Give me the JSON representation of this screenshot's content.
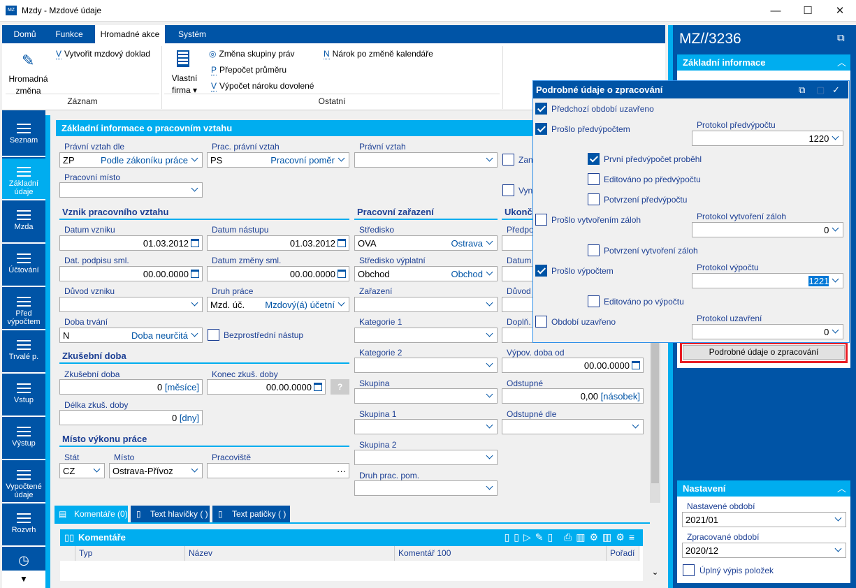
{
  "window": {
    "title": "Mzdy - Mzdové údaje",
    "minimize": "—",
    "maximize": "☐",
    "close": "✕"
  },
  "ribbon": {
    "tabs": [
      "Domů",
      "Funkce",
      "Hromadné akce",
      "Systém"
    ],
    "active_tab": "Hromadné akce",
    "hromadna_zmena": "Hromadná změna",
    "vytvorit": "Vytvořit mzdový doklad",
    "vytvorit_key": "V",
    "group1": "Záznam",
    "vlastni_firma": "Vlastní firma",
    "zmena_skupiny": "Změna skupiny práv",
    "prepocet": "Přepočet  průměru",
    "prepocet_key": "P",
    "vypocet_naroku": "Výpočet nároku dovolené",
    "vypocet_key": "V",
    "narok": "Nárok po změně kalendáře",
    "narok_key": "N",
    "group2": "Ostatní"
  },
  "sidebar": {
    "items": [
      "Seznam",
      "Základní údaje",
      "Mzda",
      "Účtování",
      "Před výpočtem",
      "Trvalé p.",
      "Vstup",
      "Výstup",
      "Vypočtené údaje",
      "Rozvrh"
    ],
    "active": "Základní údaje"
  },
  "form": {
    "header": "Základní informace o pracovním vztahu",
    "pravni_vztah_dle": {
      "label": "Právní vztah dle",
      "code": "ZP",
      "text": "Podle zákoníku práce"
    },
    "prac_pravni_vztah": {
      "label": "Prac. právní vztah",
      "code": "PS",
      "text": "Pracovní poměr"
    },
    "pravni_vztah": {
      "label": "Právní vztah",
      "value": ""
    },
    "zan": "Zan",
    "vyn": "Vyn",
    "pracovni_misto": {
      "label": "Pracovní místo",
      "value": ""
    },
    "vznik_heading": "Vznik pracovního vztahu",
    "datum_vzniku": {
      "label": "Datum vzniku",
      "value": "01.03.2012"
    },
    "datum_nastupu": {
      "label": "Datum nástupu",
      "value": "01.03.2012"
    },
    "dat_podpisu": {
      "label": "Dat. podpisu sml.",
      "value": "00.00.0000"
    },
    "datum_zmeny": {
      "label": "Datum změny sml.",
      "value": "00.00.0000"
    },
    "duvod_vzniku": {
      "label": "Důvod vzniku",
      "value": ""
    },
    "druh_prace": {
      "label": "Druh práce",
      "code": "Mzd. úč.",
      "text": "Mzdový(á) účetní"
    },
    "doba_trvani": {
      "label": "Doba trvání",
      "code": "N",
      "text": "Doba neurčitá"
    },
    "bezprostredni": {
      "label": "Bezprostřední nástup",
      "checked": false
    },
    "zkusebni_heading": "Zkušební doba",
    "zkusebni_doba": {
      "label": "Zkušební doba",
      "value": "0",
      "unit": "[měsíce]"
    },
    "konec_zkus": {
      "label": "Konec zkuš. doby",
      "value": "00.00.0000",
      "help": "?"
    },
    "delka_zkus": {
      "label": "Délka zkuš. doby",
      "value": "0",
      "unit": "[dny]"
    },
    "misto_heading": "Místo výkonu práce",
    "stat": {
      "label": "Stát",
      "value": "CZ"
    },
    "misto": {
      "label": "Místo",
      "value": "Ostrava-Přívoz"
    },
    "pracoviste": {
      "label": "Pracoviště",
      "value": "···"
    },
    "zarazeni_heading": "Pracovní zařazení",
    "stredisko": {
      "label": "Středisko",
      "code": "OVA",
      "text": "Ostrava"
    },
    "stredisko_vyplatni": {
      "label": "Středisko výplatní",
      "code": "Obchod",
      "text": "Obchod"
    },
    "zarazeni": {
      "label": "Zařazení"
    },
    "kategorie1": {
      "label": "Kategorie 1"
    },
    "kategorie2": {
      "label": "Kategorie 2"
    },
    "skupina": {
      "label": "Skupina"
    },
    "skupina1": {
      "label": "Skupina 1"
    },
    "skupina2": {
      "label": "Skupina 2"
    },
    "druh_prac_pom": {
      "label": "Druh prac. pom."
    },
    "ukonc_heading": "Ukonč",
    "predpo": "Předpo",
    "datum": "Datum",
    "duvod": "Důvod",
    "dopln": "Doplň.",
    "vypov_doba": {
      "label": "Výpov. doba od",
      "value": "00.00.0000"
    },
    "odstupne": {
      "label": "Odstupné",
      "value": "0,00",
      "unit": "[násobek]"
    },
    "odstupne_dle": {
      "label": "Odstupné dle",
      "value": ""
    }
  },
  "bottom": {
    "tabs": [
      "Komentáře (0)",
      "Text hlavičky ( )",
      "Text patičky ( )"
    ],
    "grid_title": "Komentáře",
    "columns": [
      "Typ",
      "Název",
      "Komentář 100",
      "Pořadí"
    ]
  },
  "right_panel": {
    "doc_number": "MZ//3236",
    "section1": "Základní informace",
    "details_button": "Podrobné údaje o zpracování",
    "section2": "Nastavení",
    "nastavene_label": "Nastavené období",
    "nastavene_value": "2021/01",
    "zpracovane_label": "Zpracované období",
    "zpracovane_value": "2020/12",
    "uplny_vypis": "Úplný výpis položek",
    "uplny_checked": false
  },
  "popup": {
    "title": "Podrobné údaje o zpracování",
    "predchozi": {
      "label": "Předchozí období uzavřeno",
      "checked": true
    },
    "proslo_predvypoctem": {
      "label": "Prošlo předvýpočtem",
      "checked": true
    },
    "protokol_predvypoctu": {
      "label": "Protokol předvýpočtu",
      "value": "1220"
    },
    "prvni_predvypocet": {
      "label": "První předvýpočet proběhl",
      "checked": true
    },
    "editovano_po_predvypoctu": {
      "label": "Editováno po předvýpočtu",
      "checked": false
    },
    "potvrzeni_predvypoctu": {
      "label": "Potvrzení předvýpočtu",
      "checked": false
    },
    "proslo_zalohy": {
      "label": "Prošlo vytvořením záloh",
      "checked": false
    },
    "protokol_zaloh": {
      "label": "Protokol vytvoření záloh",
      "value": "0"
    },
    "potvrzeni_zaloh": {
      "label": "Potvrzení vytvoření záloh",
      "checked": false
    },
    "proslo_vypoctem": {
      "label": "Prošlo výpočtem",
      "checked": true
    },
    "protokol_vypoctu": {
      "label": "Protokol výpočtu",
      "value": "1221"
    },
    "editovano_po_vypoctu": {
      "label": "Editováno po výpočtu",
      "checked": false
    },
    "obdobi_uzavreno": {
      "label": "Období uzavřeno",
      "checked": false
    },
    "protokol_uzavreni": {
      "label": "Protokol uzavření",
      "value": "0"
    }
  },
  "colors": {
    "dark_blue": "#0054a6",
    "cyan": "#00adef",
    "highlight": "#e81c24"
  }
}
